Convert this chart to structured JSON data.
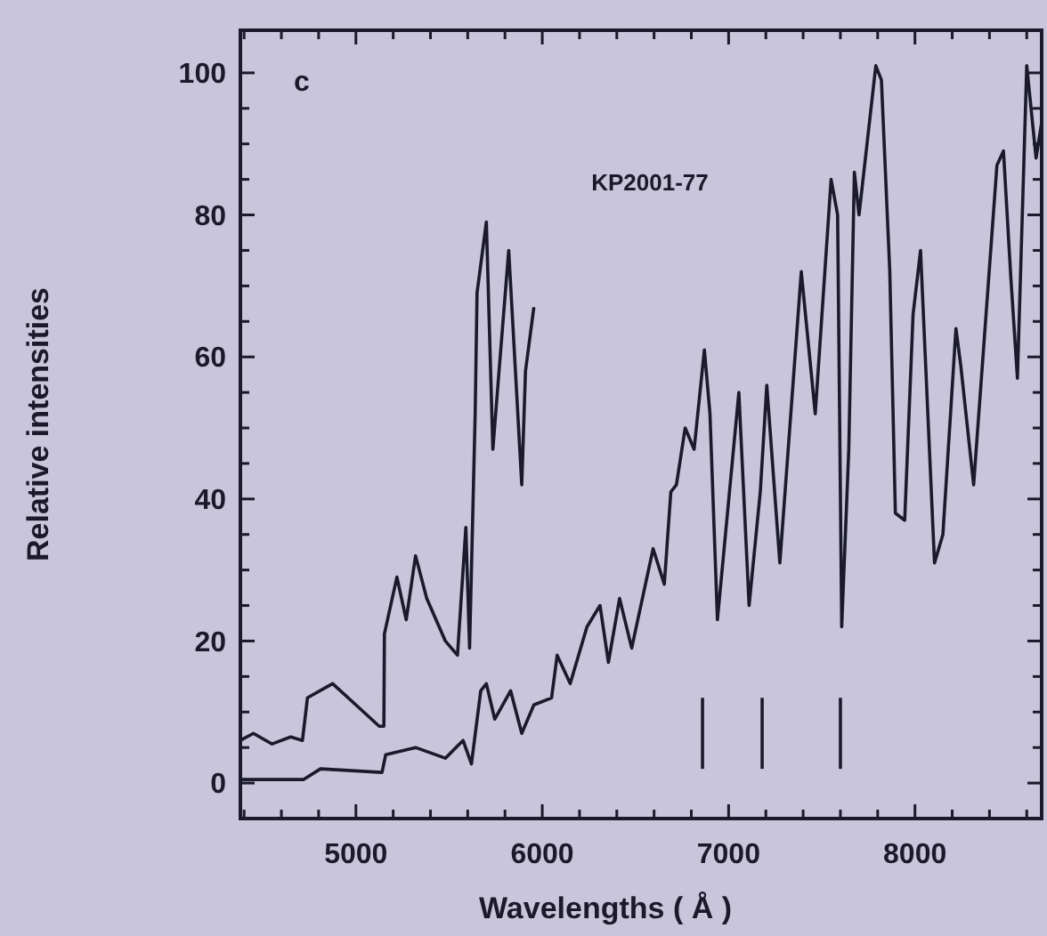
{
  "chart_data": {
    "type": "line",
    "xlabel": "Wavelengths ( Å )",
    "ylabel": "Relative intensities",
    "annotations": [
      "c",
      "KP2001-77"
    ],
    "xlim": [
      4380,
      8680
    ],
    "ylim": [
      -5,
      106
    ],
    "xticks": [
      {
        "value": 4400,
        "label": null
      },
      {
        "value": 4600,
        "label": null
      },
      {
        "value": 4800,
        "label": null
      },
      5000,
      {
        "value": 5200,
        "label": null
      },
      {
        "value": 5400,
        "label": null
      },
      {
        "value": 5600,
        "label": null
      },
      {
        "value": 5800,
        "label": null
      },
      6000,
      {
        "value": 6200,
        "label": null
      },
      {
        "value": 6400,
        "label": null
      },
      {
        "value": 6600,
        "label": null
      },
      {
        "value": 6800,
        "label": null
      },
      7000,
      {
        "value": 7200,
        "label": null
      },
      {
        "value": 7400,
        "label": null
      },
      {
        "value": 7600,
        "label": null
      },
      {
        "value": 7800,
        "label": null
      },
      8000,
      {
        "value": 8200,
        "label": null
      },
      {
        "value": 8400,
        "label": null
      },
      {
        "value": 8600,
        "label": null
      }
    ],
    "yticks": [
      0,
      {
        "value": 5,
        "label": null
      },
      {
        "value": 10,
        "label": null
      },
      {
        "value": 15,
        "label": null
      },
      20,
      {
        "value": 25,
        "label": null
      },
      {
        "value": 30,
        "label": null
      },
      {
        "value": 35,
        "label": null
      },
      40,
      {
        "value": 45,
        "label": null
      },
      {
        "value": 50,
        "label": null
      },
      {
        "value": 55,
        "label": null
      },
      60,
      {
        "value": 65,
        "label": null
      },
      {
        "value": 70,
        "label": null
      },
      {
        "value": 75,
        "label": null
      },
      80,
      {
        "value": 85,
        "label": null
      },
      {
        "value": 90,
        "label": null
      },
      {
        "value": 95,
        "label": null
      },
      100
    ],
    "grid": false,
    "marker": "none",
    "line_style": "solid",
    "ref_lines": [
      {
        "axis": "x",
        "value": 6860,
        "color": "#1a1a2a"
      },
      {
        "axis": "x",
        "value": 7180,
        "color": "#1a1a2a"
      },
      {
        "axis": "x",
        "value": 7600,
        "color": "#1a1a2a"
      }
    ],
    "series": [
      {
        "color": "#1a1a2a",
        "x": [
          4380,
          4450,
          4550,
          4650,
          4713,
          4740,
          4875,
          5000,
          5125,
          5150,
          5153,
          5220,
          5270,
          5320,
          5380,
          5480,
          5545,
          5590,
          5610,
          5640,
          5650,
          5700,
          5735,
          5765,
          5820,
          5890,
          5910,
          5955
        ],
        "values": [
          6,
          7,
          5.5,
          6.5,
          6,
          12,
          14,
          11,
          8,
          8,
          21,
          29,
          23,
          32,
          26,
          20,
          18,
          36,
          19,
          52,
          69,
          79,
          47,
          57,
          75,
          42,
          58,
          67
        ]
      },
      {
        "color": "#1a1a2a",
        "x": [
          4380,
          4720,
          4810,
          5140,
          5160,
          5320,
          5480,
          5575,
          5620,
          5670,
          5700,
          5745,
          5830,
          5890,
          5955,
          6050,
          6080,
          6150,
          6240,
          6310,
          6355,
          6415,
          6480,
          6595,
          6655,
          6690,
          6720,
          6767,
          6815,
          6870,
          6900,
          6940,
          7055,
          7110,
          7170,
          7205,
          7275,
          7390,
          7465,
          7550,
          7585,
          7607,
          7645,
          7675,
          7700,
          7790,
          7820,
          7865,
          7895,
          7945,
          7990,
          8030,
          8105,
          8150,
          8220,
          8245,
          8315,
          8440,
          8475,
          8515,
          8550,
          8600,
          8650,
          8680
        ],
        "values": [
          0.5,
          0.5,
          2,
          1.5,
          4,
          5,
          3.5,
          6,
          2.7,
          13,
          14,
          9,
          13,
          7,
          11,
          12,
          18,
          14,
          22,
          25,
          17,
          26,
          19,
          33,
          28,
          41,
          42,
          50,
          47,
          61,
          52,
          23,
          55,
          25,
          41,
          56,
          31,
          72,
          52,
          85,
          80,
          22,
          47,
          86,
          80,
          101,
          99,
          72,
          38,
          37,
          66,
          75,
          31,
          35,
          64,
          59,
          42,
          87,
          89,
          71,
          57,
          101,
          88,
          93
        ]
      }
    ]
  }
}
